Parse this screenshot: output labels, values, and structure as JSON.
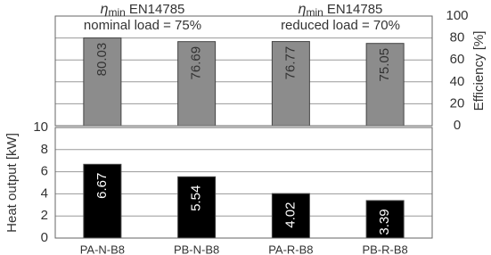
{
  "chart_data": [
    {
      "type": "bar",
      "annotations": [
        {
          "symbol": "η",
          "sub": "min",
          "standard": "EN14785",
          "note": "nominal load = 75%"
        },
        {
          "symbol": "η",
          "sub": "min",
          "standard": "EN14785",
          "note": "reduced load = 70%"
        }
      ],
      "ylabel": "Efficiency [%]",
      "values": [
        80.03,
        76.69,
        76.77,
        75.05
      ],
      "color": "#8c8c8c",
      "ylim": [
        0,
        100
      ],
      "yticks": [
        0,
        20,
        40,
        60,
        80,
        100
      ],
      "grid": true
    },
    {
      "type": "bar",
      "ylabel": "Heat output [kW]",
      "categories": [
        "PA-N-B8",
        "PB-N-B8",
        "PA-R-B8",
        "PB-R-B8"
      ],
      "values": [
        6.67,
        5.54,
        4.02,
        3.39
      ],
      "color": "#000000",
      "ylim": [
        0,
        10
      ],
      "yticks": [
        0,
        2,
        4,
        6,
        8,
        10
      ],
      "grid": true
    }
  ]
}
